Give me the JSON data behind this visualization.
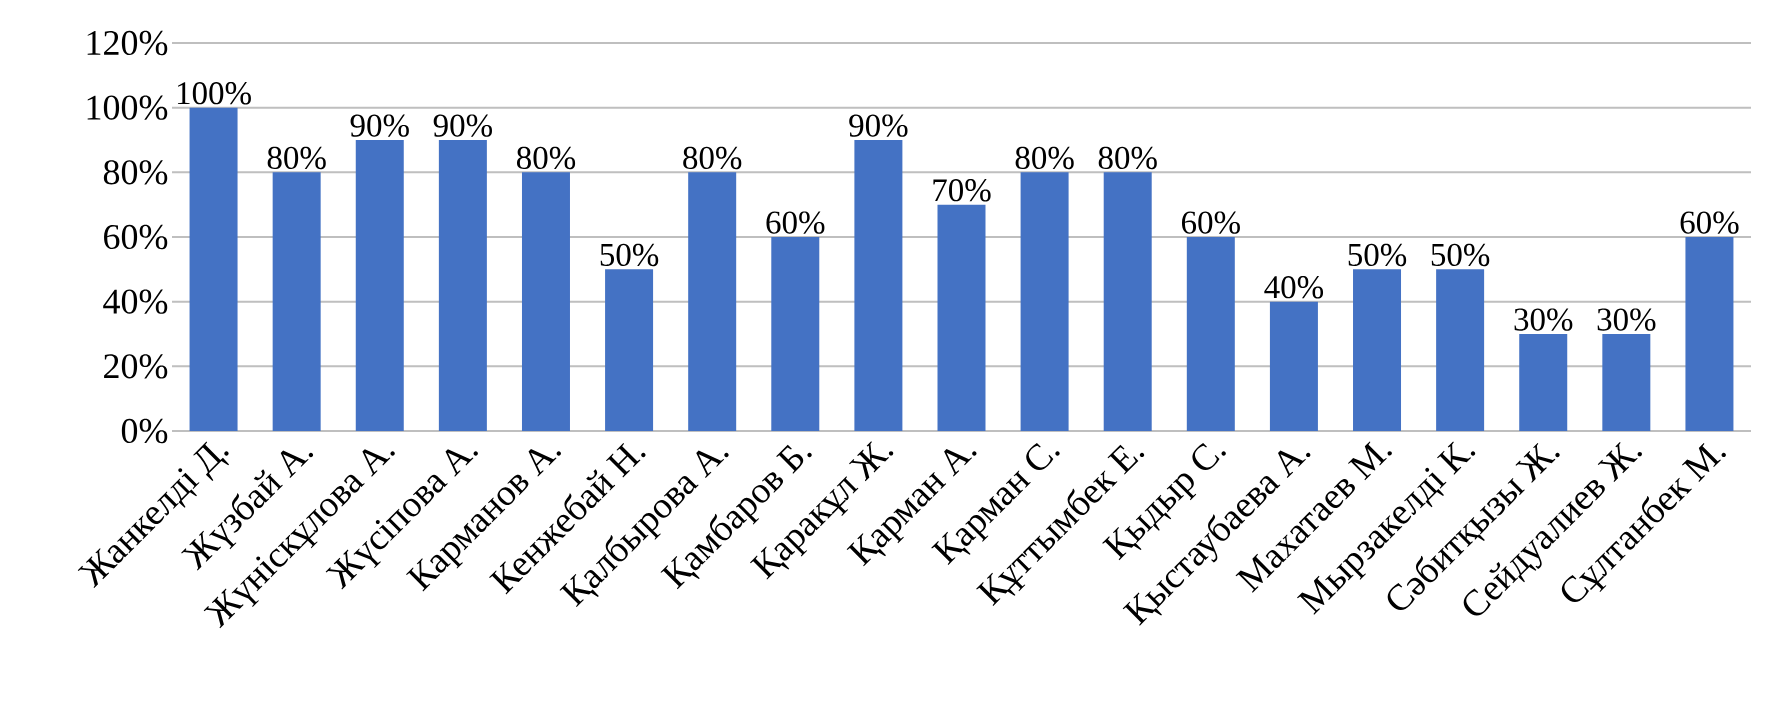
{
  "chart_data": {
    "type": "bar",
    "categories": [
      "Жанкелді Д.",
      "Жүзбай А.",
      "Жүніскұлова А.",
      "Жүсіпова А.",
      "Карманов А.",
      "Кенжебай Н.",
      "Қалбырова А.",
      "Қамбаров Б.",
      "Қаракұл Ж.",
      "Қарман А.",
      "Қарман С.",
      "Құттымбек Е.",
      "Қыдыр С.",
      "Қыстаубаева А.",
      "Махатаев М.",
      "Мырзакелді К.",
      "Сәбитқызы Ж.",
      "Сейдуалиев Ж.",
      "Сұлтанбек М."
    ],
    "values": [
      100,
      80,
      90,
      90,
      80,
      50,
      80,
      60,
      90,
      70,
      80,
      80,
      60,
      40,
      50,
      50,
      30,
      30,
      60
    ],
    "value_labels": [
      "100%",
      "80%",
      "90%",
      "90%",
      "80%",
      "50%",
      "80%",
      "60%",
      "90%",
      "70%",
      "80%",
      "80%",
      "60%",
      "40%",
      "50%",
      "50%",
      "30%",
      "30%",
      "60%"
    ],
    "color": "#4472c4",
    "ylim": [
      0,
      120
    ],
    "yticks": [
      {
        "value": 0,
        "label": "0%"
      },
      {
        "value": 20,
        "label": "20%"
      },
      {
        "value": 40,
        "label": "40%"
      },
      {
        "value": 60,
        "label": "60%"
      },
      {
        "value": 80,
        "label": "80%"
      },
      {
        "value": 100,
        "label": "100%"
      },
      {
        "value": 120,
        "label": "120%"
      }
    ],
    "grid": "y"
  }
}
